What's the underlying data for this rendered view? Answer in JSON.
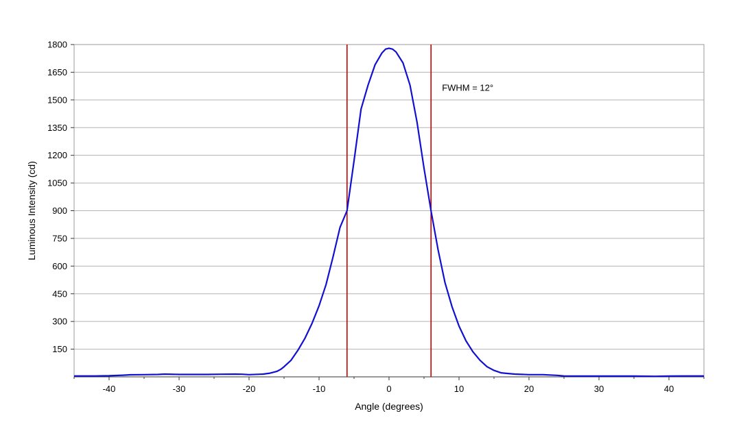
{
  "chart_data": {
    "type": "line",
    "xlabel": "Angle (degrees)",
    "ylabel": "Luminous Intensity (cd)",
    "xlim": [
      -45,
      45
    ],
    "ylim": [
      0,
      1800
    ],
    "x_ticks": [
      -40,
      -30,
      -20,
      -10,
      0,
      10,
      20,
      30,
      40
    ],
    "y_ticks": [
      150,
      300,
      450,
      600,
      750,
      900,
      1050,
      1200,
      1350,
      1500,
      1650,
      1800
    ],
    "grid": "horizontal",
    "legend": "none",
    "series_color": "#1010d0",
    "marker_color": "#cc0000",
    "annotation": "FWHM = 12°",
    "vertical_markers": [
      -6,
      6
    ],
    "series": [
      {
        "x": [
          -45,
          -42,
          -40,
          -38,
          -37,
          -35,
          -33,
          -32,
          -30,
          -28,
          -26,
          -24,
          -22,
          -21,
          -20,
          -18,
          -17,
          -16,
          -15.5,
          -15,
          -14,
          -13,
          -12,
          -11,
          -10,
          -9,
          -8,
          -7,
          -6,
          -5,
          -4,
          -3,
          -2,
          -1,
          -0.5,
          0,
          0.5,
          1,
          2,
          3,
          4,
          5,
          6,
          7,
          8,
          9,
          10,
          11,
          12,
          13,
          14,
          15,
          16,
          17,
          18,
          20,
          22,
          23,
          24,
          25,
          27,
          30,
          33,
          35,
          38,
          40,
          42,
          45
        ],
        "y": [
          5,
          5,
          6,
          9,
          11,
          12,
          13,
          15,
          13,
          13,
          13,
          14,
          15,
          14,
          12,
          15,
          20,
          30,
          40,
          55,
          90,
          145,
          210,
          290,
          385,
          500,
          650,
          810,
          900,
          1170,
          1450,
          1580,
          1690,
          1755,
          1775,
          1780,
          1775,
          1760,
          1700,
          1580,
          1380,
          1130,
          900,
          690,
          510,
          380,
          275,
          195,
          135,
          90,
          55,
          35,
          22,
          18,
          15,
          12,
          12,
          10,
          8,
          5,
          4,
          4,
          4,
          4,
          3,
          4,
          5,
          5
        ]
      }
    ]
  }
}
